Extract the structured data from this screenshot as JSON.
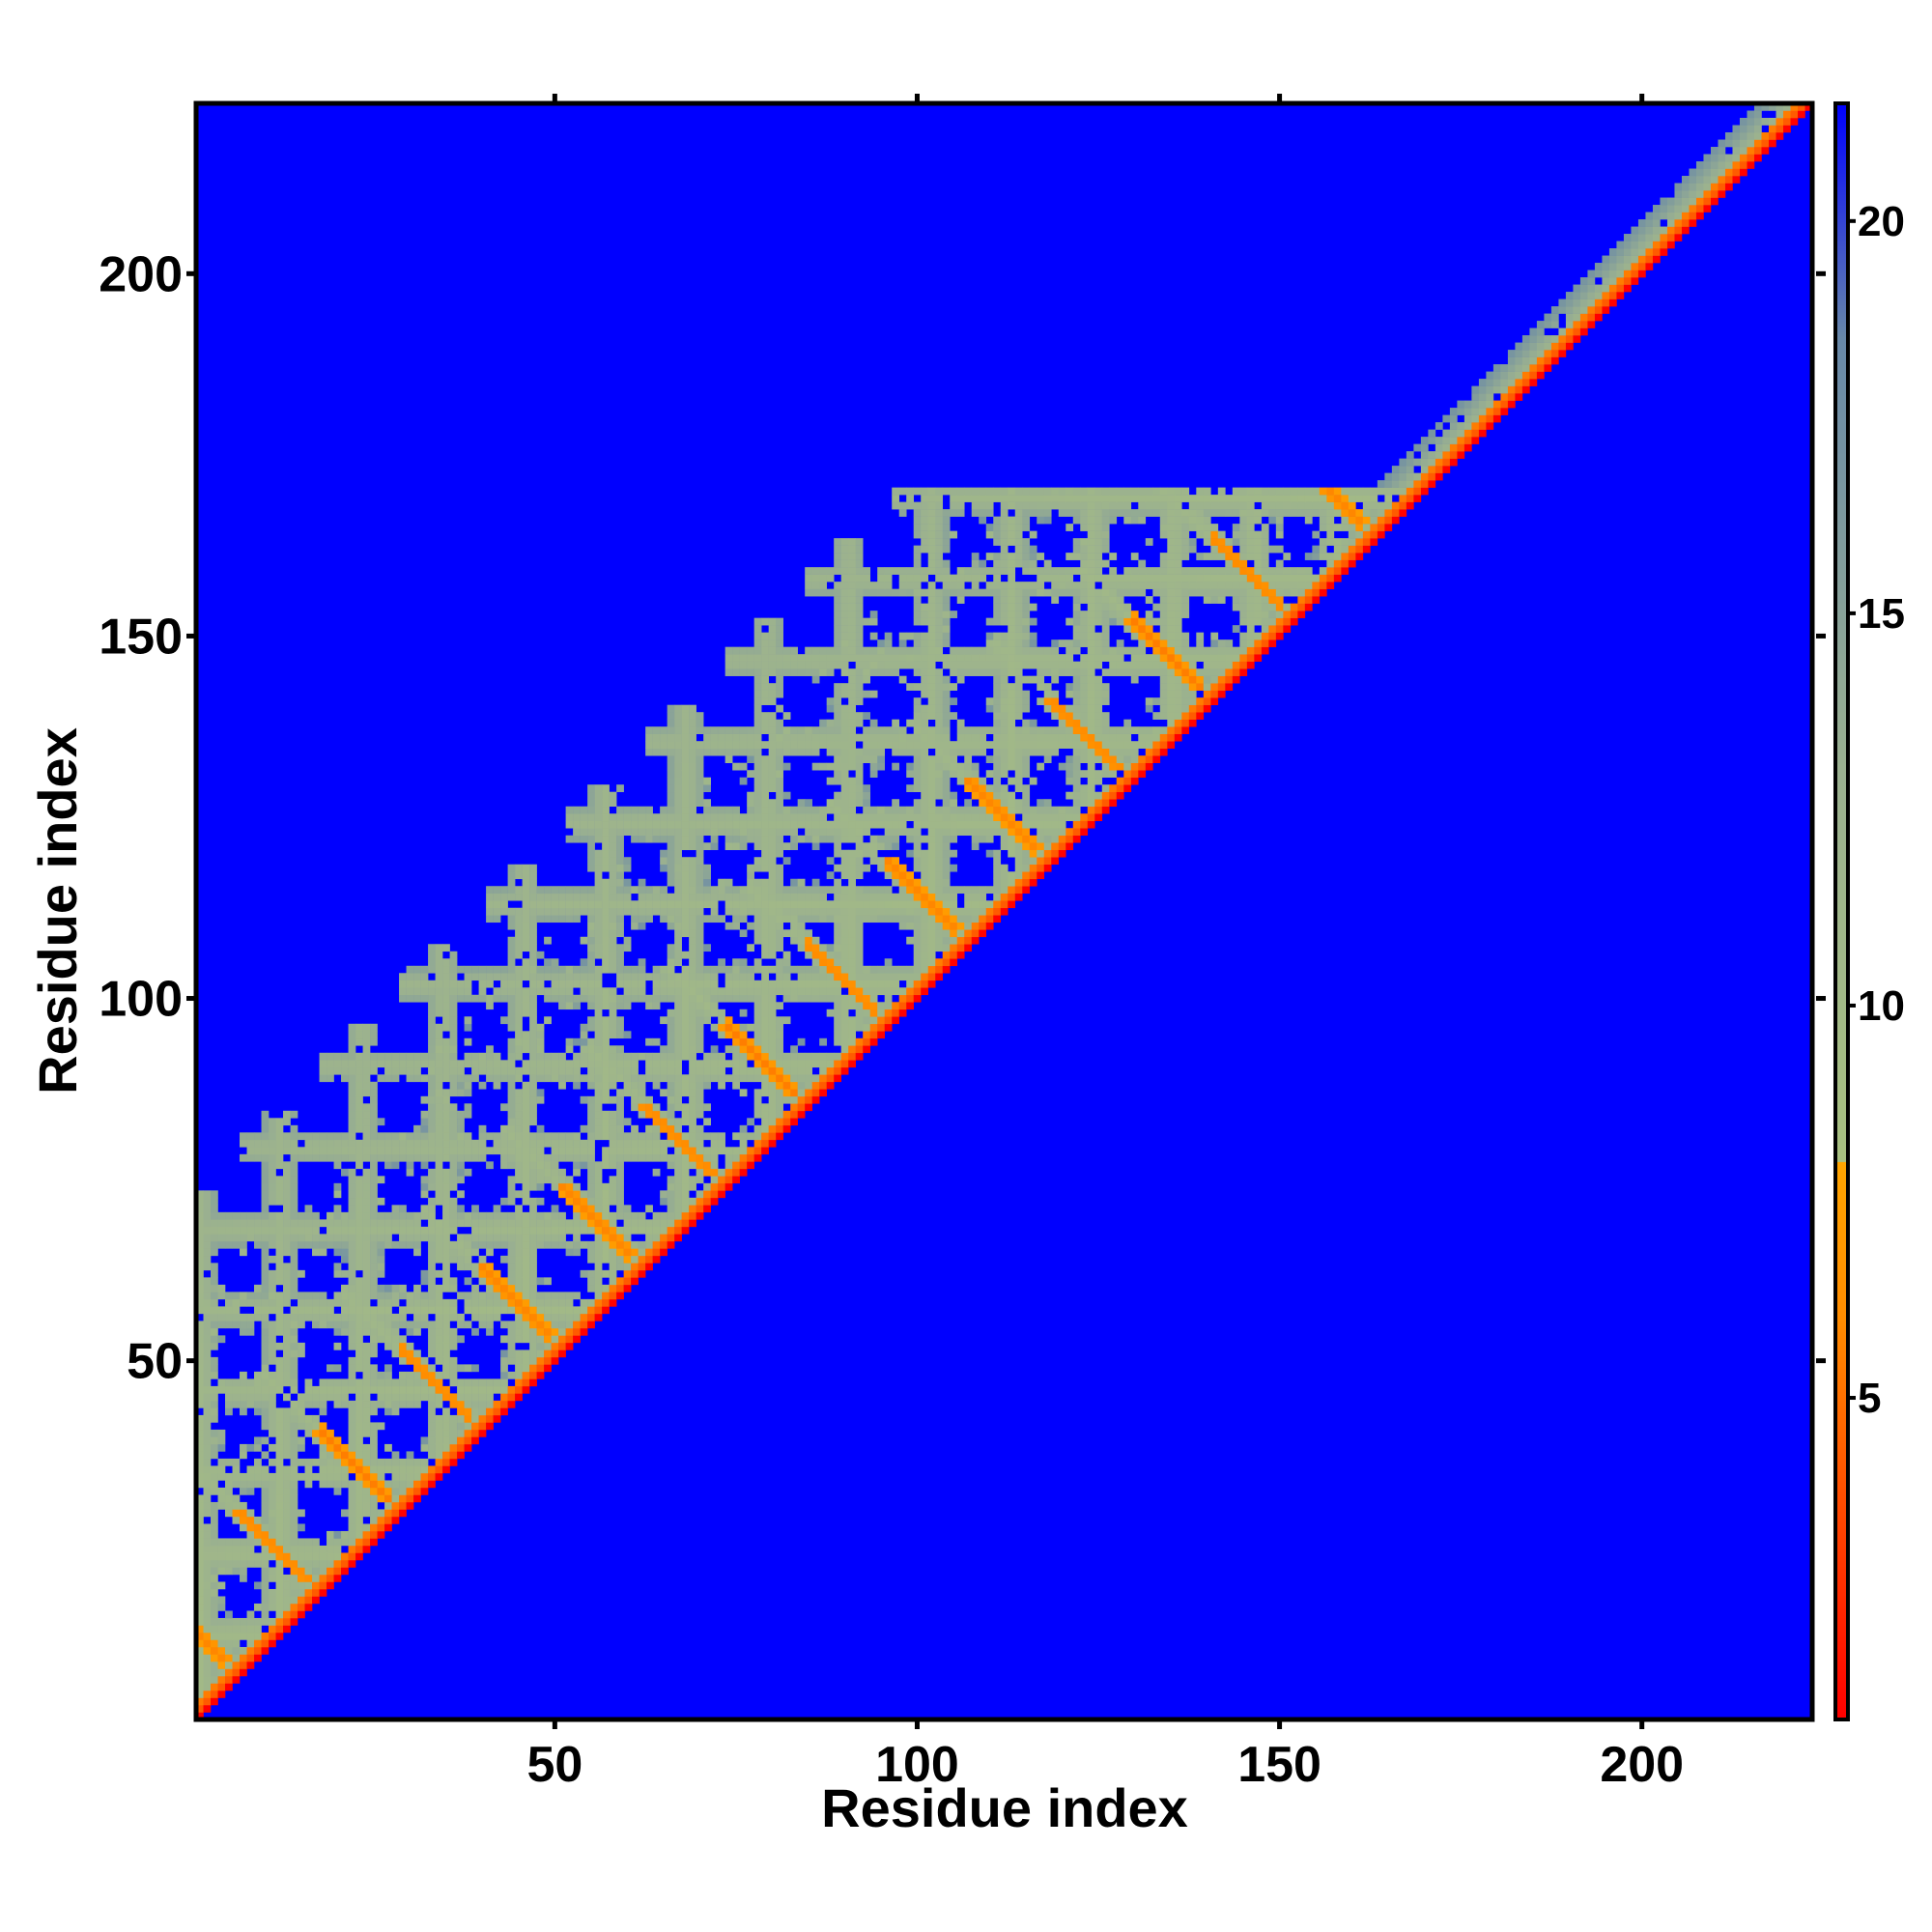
{
  "chart_data": {
    "type": "heatmap",
    "title": "",
    "xlabel": "Residue index",
    "ylabel": "Residue index",
    "xlim": [
      1,
      223
    ],
    "ylim": [
      1,
      223
    ],
    "x_ticks": [
      50,
      100,
      150,
      200
    ],
    "y_ticks": [
      50,
      100,
      150,
      200
    ],
    "x_tick_labels": [
      "50",
      "100",
      "150",
      "200"
    ],
    "y_tick_labels": [
      "50",
      "100",
      "150",
      "200"
    ],
    "n_residues": 223,
    "matrix_symmetric": false,
    "plotted_triangle": "upper-left (y >= x, i.e. row index above the diagonal)",
    "value_domain": [
      0.9,
      21.5
    ],
    "background_value": 21.5,
    "contact_threshold": 8,
    "helix_period_residues": 11.2,
    "first_helix_start": 1,
    "helical_region": [
      1,
      160
    ],
    "colorbar": {
      "ticks": [
        5,
        10,
        15,
        20
      ],
      "tick_labels": [
        "5",
        "10",
        "15",
        "20"
      ],
      "range": [
        0.9,
        21.5
      ],
      "stops": [
        {
          "value": 0.9,
          "color": "#ff0000"
        },
        {
          "value": 6.0,
          "color": "#ff8c00"
        },
        {
          "value": 8.0,
          "color": "#ffa500"
        },
        {
          "value": 8.01,
          "color": "#a8c080"
        },
        {
          "value": 13.0,
          "color": "#9ab090"
        },
        {
          "value": 18.5,
          "color": "#6888a8"
        },
        {
          "value": 21.5,
          "color": "#0000ff"
        }
      ]
    },
    "colors": {
      "background": "#0000ff",
      "diagonal": "#ff0000",
      "near_contact": "#ff8c00",
      "mid_range": "#a8c080",
      "far": "#0000ff"
    },
    "grid": false,
    "legend": "colorbar-right"
  }
}
